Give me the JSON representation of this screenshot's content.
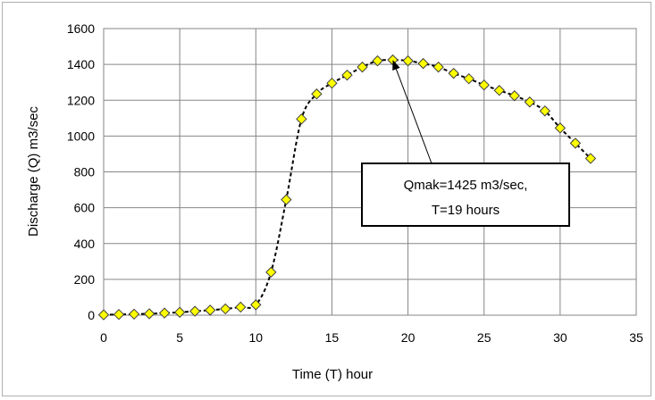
{
  "chart_data": {
    "type": "scatter",
    "xlabel": "Time (T) hour",
    "ylabel": "Discharge (Q) m3/sec",
    "xlim": [
      0,
      35
    ],
    "ylim": [
      0,
      1600
    ],
    "xticks": [
      0,
      5,
      10,
      15,
      20,
      25,
      30,
      35
    ],
    "yticks": [
      0,
      200,
      400,
      600,
      800,
      1000,
      1200,
      1400,
      1600
    ],
    "grid": true,
    "series": [
      {
        "marker": "diamond",
        "marker_color": "#ffff00",
        "marker_edge": "#404040",
        "line_style": "dashed-smooth",
        "line_color": "#000000",
        "x": [
          0,
          1,
          2,
          3,
          4,
          5,
          6,
          7,
          8,
          9,
          10,
          11,
          12,
          13,
          14,
          15,
          16,
          17,
          18,
          19,
          20,
          21,
          22,
          23,
          24,
          25,
          26,
          27,
          28,
          29,
          30,
          31,
          32
        ],
        "y": [
          2,
          4,
          6,
          8,
          12,
          16,
          22,
          28,
          35,
          45,
          58,
          240,
          645,
          1095,
          1235,
          1295,
          1340,
          1385,
          1420,
          1425,
          1420,
          1405,
          1385,
          1350,
          1320,
          1285,
          1255,
          1225,
          1190,
          1140,
          1045,
          960,
          875
        ]
      }
    ],
    "annotation": {
      "lines": [
        "Qmak=1425 m3/sec,",
        "T=19 hours"
      ],
      "points_to": [
        19,
        1425
      ]
    }
  }
}
